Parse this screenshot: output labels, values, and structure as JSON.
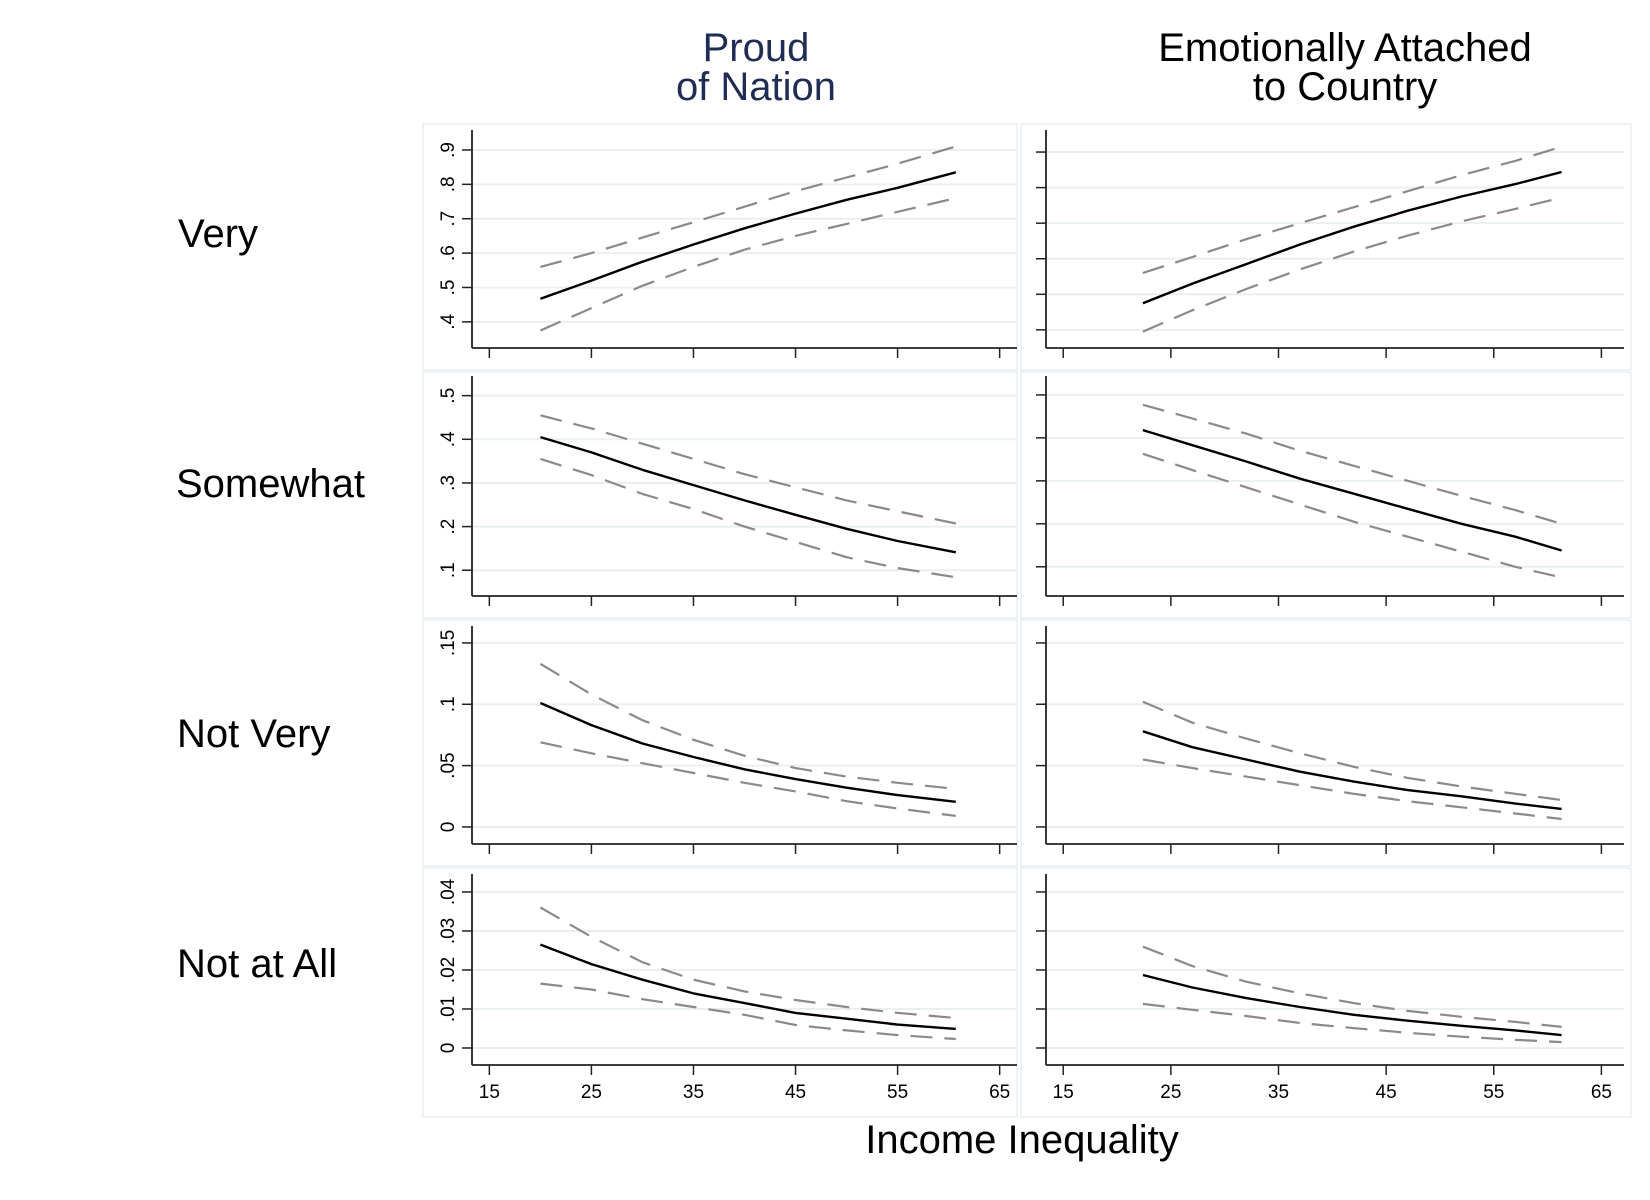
{
  "chart_data": {
    "type": "line",
    "xlabel": "Income Inequality",
    "x_ticks": [
      "15",
      "25",
      "35",
      "45",
      "55",
      "65"
    ],
    "x_tick_values": [
      15,
      25,
      35,
      45,
      55,
      65
    ],
    "grid": true,
    "colors": {
      "column_title_1": "#1f2d55",
      "column_title_2": "#000000",
      "estimate_line": "#000000",
      "ci_line": "#8a8a8a",
      "gridline": "#eaf0f2",
      "panel_border": "#e8eef0",
      "axis": "#222222"
    },
    "columns": [
      {
        "title_line1": "Proud",
        "title_line2": "of Nation"
      },
      {
        "title_line1": "Emotionally Attached",
        "title_line2": "to Country"
      }
    ],
    "rows": [
      {
        "label": "Very",
        "y_ticks": [
          ".4",
          ".5",
          ".6",
          ".7",
          ".8",
          ".9"
        ],
        "y_tick_values": [
          0.4,
          0.5,
          0.6,
          0.7,
          0.8,
          0.9
        ]
      },
      {
        "label": "Somewhat",
        "y_ticks": [
          ".1",
          ".2",
          ".3",
          ".4",
          ".5"
        ],
        "y_tick_values": [
          0.1,
          0.2,
          0.3,
          0.4,
          0.5
        ]
      },
      {
        "label": "Not Very",
        "y_ticks": [
          "0",
          ".05",
          ".1",
          ".15"
        ],
        "y_tick_values": [
          0,
          0.05,
          0.1,
          0.15
        ]
      },
      {
        "label": "Not at All",
        "y_ticks": [
          "0",
          ".01",
          ".02",
          ".03",
          ".04"
        ],
        "y_tick_values": [
          0,
          0.01,
          0.02,
          0.03,
          0.04
        ]
      }
    ],
    "panels": [
      {
        "column": 0,
        "row": 0,
        "xlim": [
          13.3,
          66.7
        ],
        "ylim": [
          0.324,
          0.958
        ],
        "show_y_labels": true,
        "x": [
          20,
          25,
          30,
          35,
          40,
          45,
          50,
          55,
          60.7
        ],
        "series": [
          {
            "name": "estimate",
            "values": [
              0.467,
              0.52,
              0.575,
              0.625,
              0.672,
              0.715,
              0.755,
              0.79,
              0.835
            ]
          },
          {
            "name": "upper_ci",
            "values": [
              0.56,
              0.6,
              0.645,
              0.69,
              0.735,
              0.78,
              0.82,
              0.86,
              0.91
            ]
          },
          {
            "name": "lower_ci",
            "values": [
              0.375,
              0.44,
              0.505,
              0.56,
              0.61,
              0.65,
              0.685,
              0.72,
              0.76
            ]
          }
        ]
      },
      {
        "column": 1,
        "row": 0,
        "xlim": [
          13.4,
          67.1
        ],
        "ylim": [
          0.349,
          0.962
        ],
        "show_y_labels": false,
        "x": [
          22.4,
          27,
          32,
          37,
          42,
          47,
          52,
          57,
          61.3
        ],
        "series": [
          {
            "name": "estimate",
            "values": [
              0.475,
              0.53,
              0.585,
              0.64,
              0.69,
              0.735,
              0.775,
              0.81,
              0.844
            ]
          },
          {
            "name": "upper_ci",
            "values": [
              0.56,
              0.605,
              0.655,
              0.7,
              0.745,
              0.79,
              0.835,
              0.875,
              0.915
            ]
          },
          {
            "name": "lower_ci",
            "values": [
              0.395,
              0.455,
              0.515,
              0.57,
              0.62,
              0.665,
              0.705,
              0.74,
              0.772
            ]
          }
        ]
      },
      {
        "column": 0,
        "row": 1,
        "xlim": [
          13.3,
          66.7
        ],
        "ylim": [
          0.041,
          0.545
        ],
        "show_y_labels": true,
        "x": [
          20,
          25,
          30,
          35,
          40,
          45,
          50,
          55,
          60.7
        ],
        "series": [
          {
            "name": "estimate",
            "values": [
              0.405,
              0.37,
              0.33,
              0.295,
              0.26,
              0.227,
              0.195,
              0.167,
              0.141
            ]
          },
          {
            "name": "upper_ci",
            "values": [
              0.455,
              0.425,
              0.39,
              0.355,
              0.32,
              0.29,
              0.26,
              0.235,
              0.207
            ]
          },
          {
            "name": "lower_ci",
            "values": [
              0.355,
              0.318,
              0.275,
              0.24,
              0.2,
              0.165,
              0.13,
              0.105,
              0.084
            ]
          }
        ]
      },
      {
        "column": 1,
        "row": 1,
        "xlim": [
          13.4,
          67.1
        ],
        "ylim": [
          0.032,
          0.544
        ],
        "show_y_labels": false,
        "x": [
          22.4,
          27,
          32,
          37,
          42,
          47,
          52,
          57,
          61.3
        ],
        "series": [
          {
            "name": "estimate",
            "values": [
              0.418,
              0.383,
              0.345,
              0.305,
              0.27,
              0.235,
              0.2,
              0.17,
              0.138
            ]
          },
          {
            "name": "upper_ci",
            "values": [
              0.477,
              0.445,
              0.41,
              0.37,
              0.335,
              0.3,
              0.265,
              0.232,
              0.2
            ]
          },
          {
            "name": "lower_ci",
            "values": [
              0.363,
              0.325,
              0.285,
              0.245,
              0.205,
              0.17,
              0.135,
              0.1,
              0.075
            ]
          }
        ]
      },
      {
        "column": 0,
        "row": 2,
        "xlim": [
          13.3,
          66.7
        ],
        "ylim": [
          -0.0139,
          0.1638
        ],
        "show_y_labels": true,
        "x": [
          20,
          25,
          30,
          35,
          40,
          45,
          50,
          55,
          60.7
        ],
        "series": [
          {
            "name": "estimate",
            "values": [
              0.101,
              0.083,
              0.068,
              0.057,
              0.047,
              0.039,
              0.032,
              0.026,
              0.0205
            ]
          },
          {
            "name": "upper_ci",
            "values": [
              0.133,
              0.108,
              0.087,
              0.071,
              0.058,
              0.048,
              0.041,
              0.036,
              0.031
            ]
          },
          {
            "name": "lower_ci",
            "values": [
              0.069,
              0.06,
              0.052,
              0.044,
              0.036,
              0.029,
              0.021,
              0.015,
              0.009
            ]
          }
        ]
      },
      {
        "column": 1,
        "row": 2,
        "xlim": [
          13.4,
          67.1
        ],
        "ylim": [
          -0.0139,
          0.1638
        ],
        "show_y_labels": false,
        "x": [
          22.4,
          27,
          32,
          37,
          42,
          47,
          52,
          57,
          61.3
        ],
        "series": [
          {
            "name": "estimate",
            "values": [
              0.078,
              0.065,
              0.055,
              0.045,
              0.037,
              0.03,
              0.025,
              0.019,
              0.0147
            ]
          },
          {
            "name": "upper_ci",
            "values": [
              0.102,
              0.085,
              0.072,
              0.06,
              0.049,
              0.04,
              0.033,
              0.027,
              0.022
            ]
          },
          {
            "name": "lower_ci",
            "values": [
              0.055,
              0.048,
              0.041,
              0.034,
              0.027,
              0.021,
              0.016,
              0.011,
              0.0065
            ]
          }
        ]
      },
      {
        "column": 0,
        "row": 3,
        "xlim": [
          13.3,
          66.7
        ],
        "ylim": [
          -0.00436,
          0.0446
        ],
        "show_y_labels": true,
        "x": [
          20,
          25,
          30,
          35,
          40,
          45,
          50,
          55,
          60.7
        ],
        "series": [
          {
            "name": "estimate",
            "values": [
              0.0265,
              0.0215,
              0.0175,
              0.014,
              0.0115,
              0.009,
              0.0075,
              0.006,
              0.0049
            ]
          },
          {
            "name": "upper_ci",
            "values": [
              0.036,
              0.0285,
              0.022,
              0.0175,
              0.0145,
              0.0123,
              0.0105,
              0.009,
              0.0077
            ]
          },
          {
            "name": "lower_ci",
            "values": [
              0.0165,
              0.015,
              0.0125,
              0.0105,
              0.0085,
              0.0059,
              0.0045,
              0.0033,
              0.0023
            ]
          }
        ]
      },
      {
        "column": 1,
        "row": 3,
        "xlim": [
          13.4,
          67.1
        ],
        "ylim": [
          -0.00436,
          0.0446
        ],
        "show_y_labels": false,
        "x": [
          22.4,
          27,
          32,
          37,
          42,
          47,
          52,
          57,
          61.3
        ],
        "series": [
          {
            "name": "estimate",
            "values": [
              0.0187,
              0.0155,
              0.0128,
              0.0105,
              0.0085,
              0.007,
              0.0057,
              0.0045,
              0.0033
            ]
          },
          {
            "name": "upper_ci",
            "values": [
              0.026,
              0.021,
              0.017,
              0.014,
              0.0115,
              0.0095,
              0.008,
              0.0067,
              0.0054
            ]
          },
          {
            "name": "lower_ci",
            "values": [
              0.0113,
              0.0098,
              0.0082,
              0.0064,
              0.0051,
              0.0039,
              0.0029,
              0.0021,
              0.0015
            ]
          }
        ]
      }
    ]
  }
}
